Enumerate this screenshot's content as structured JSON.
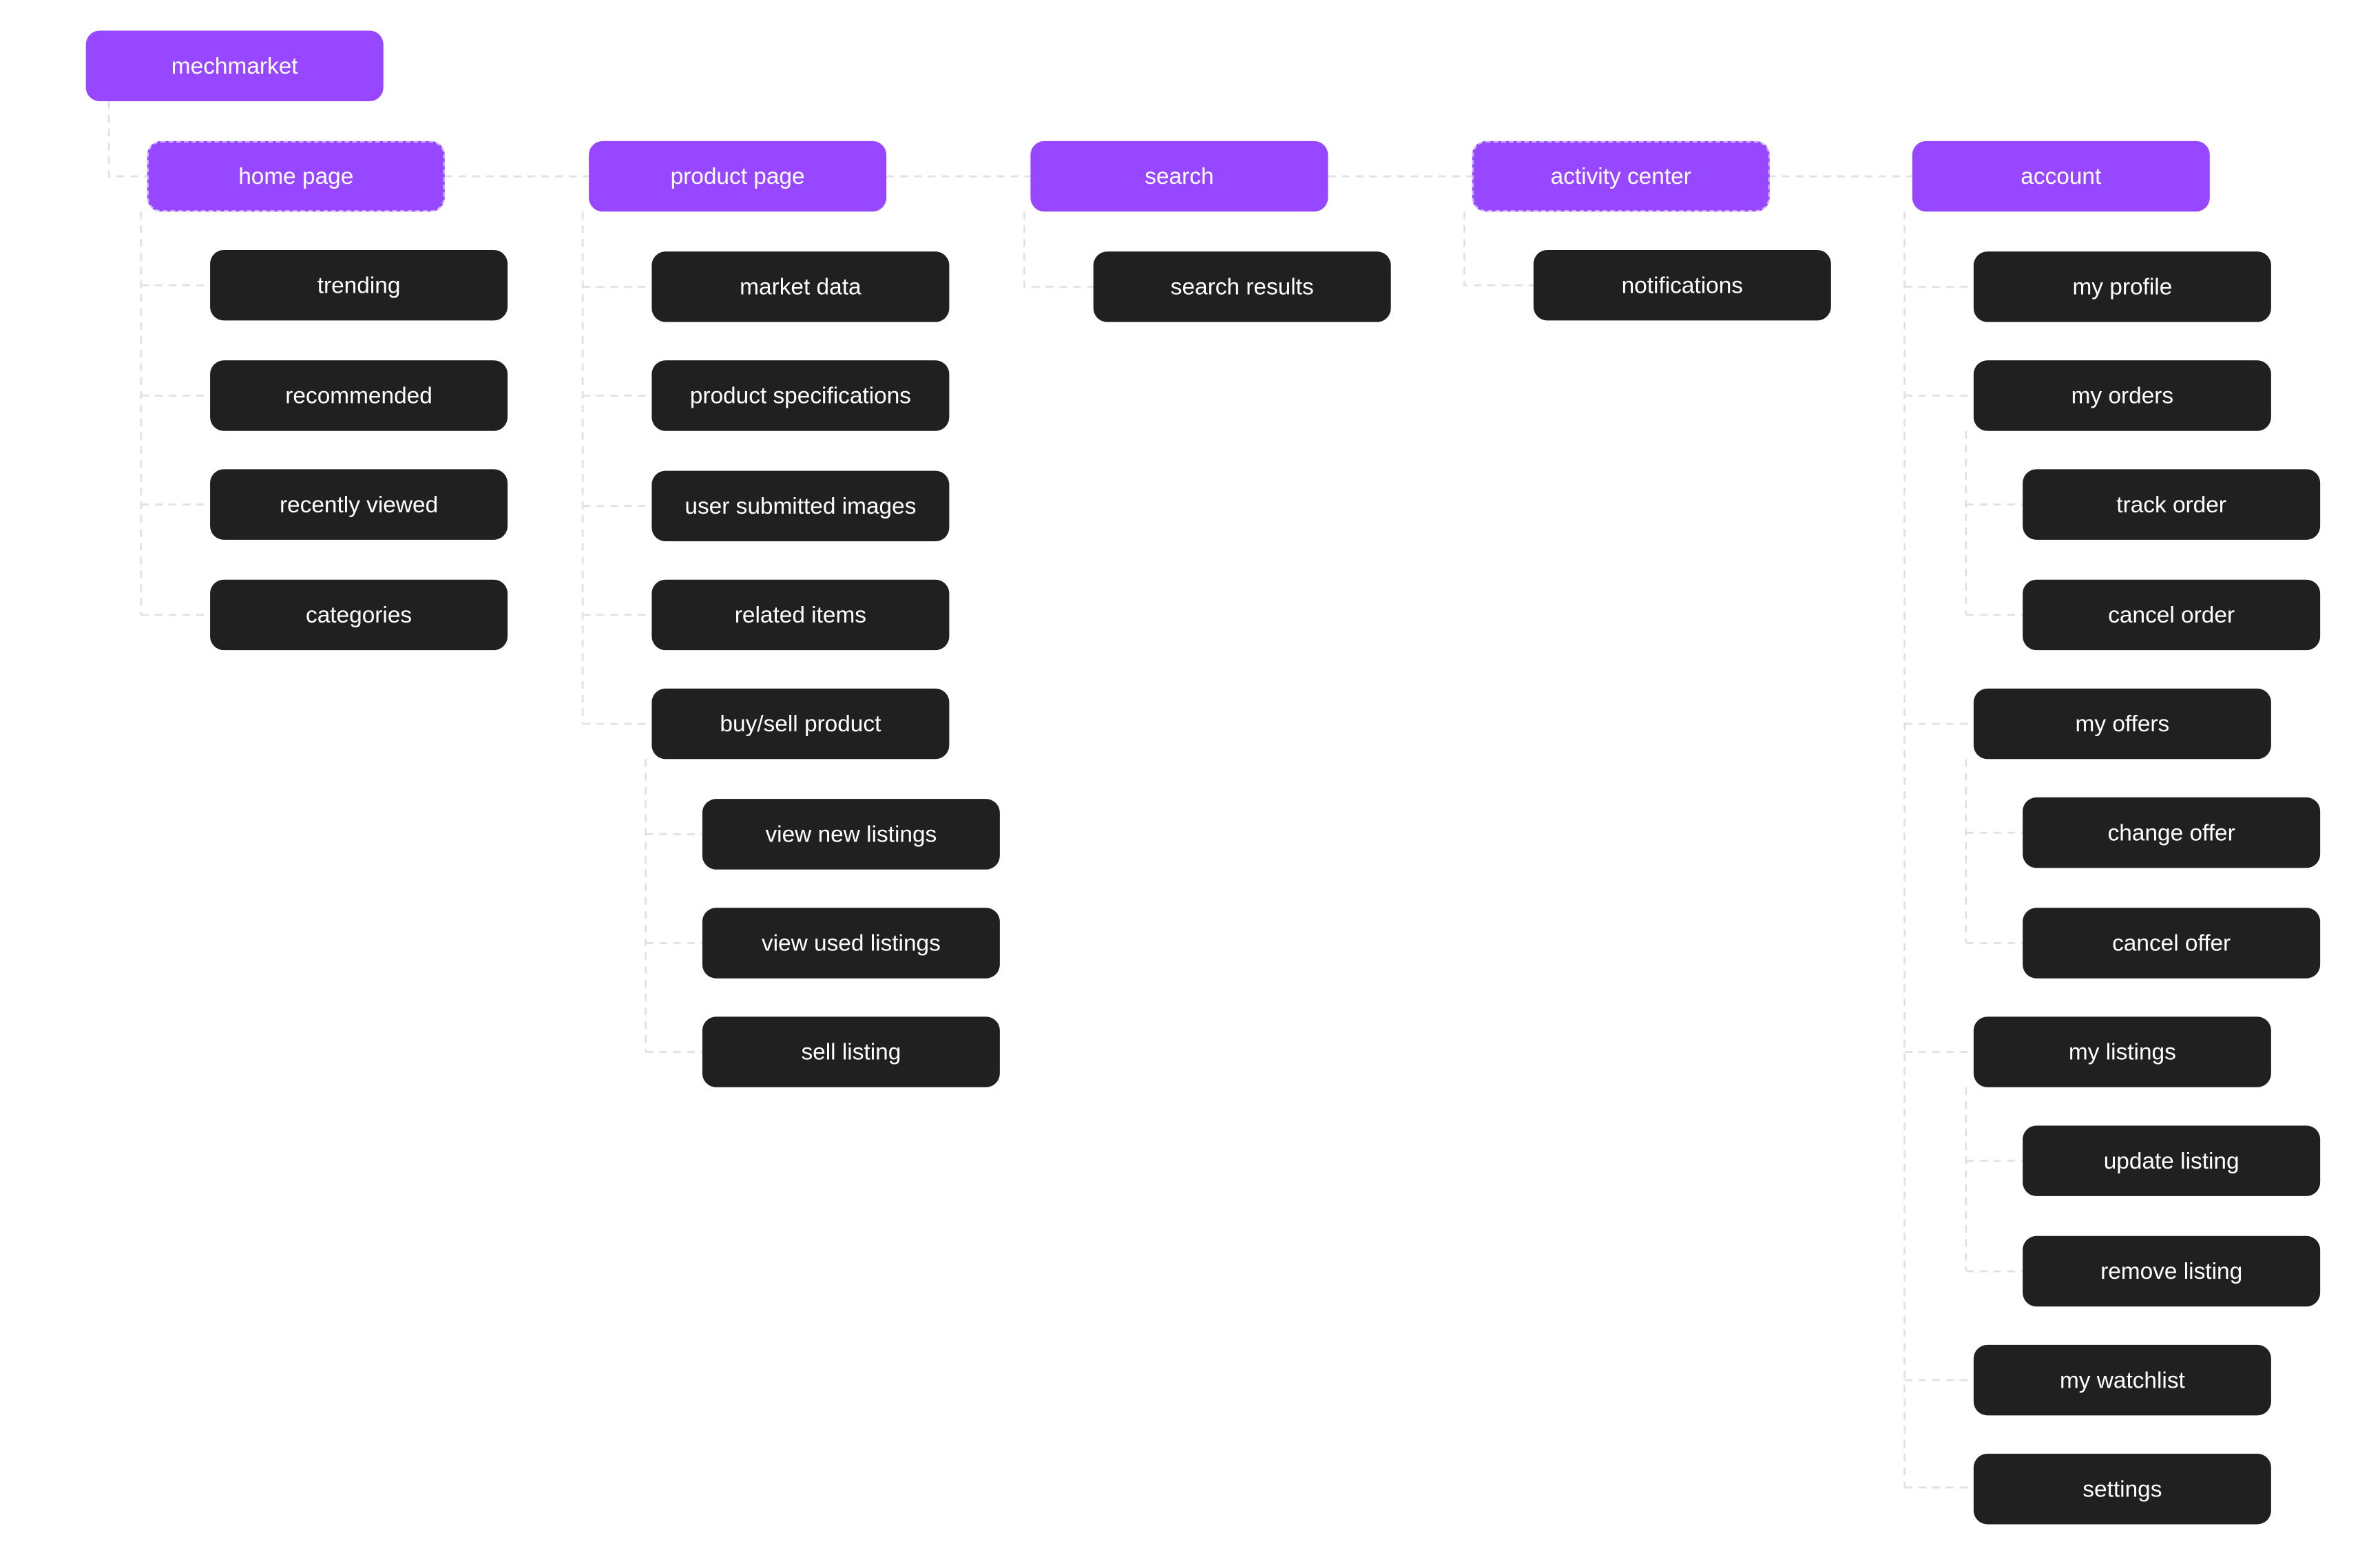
{
  "colors": {
    "section": "#9747ff",
    "leaf": "#202020",
    "connector": "#e2e2e2"
  },
  "root": "mechmarket",
  "sections": {
    "home": {
      "title": "home page",
      "items": {
        "trending": "trending",
        "recommended": "recommended",
        "recently_viewed": "recently viewed",
        "categories": "categories"
      }
    },
    "product": {
      "title": "product page",
      "items": {
        "market_data": "market data",
        "product_specifications": "product specifications",
        "user_submitted_images": "user submitted images",
        "related_items": "related items",
        "buy_sell": "buy/sell product"
      },
      "buy_sell_children": {
        "view_new_listings": "view new listings",
        "view_used_listings": "view used listings",
        "sell_listing": "sell listing"
      }
    },
    "search": {
      "title": "search",
      "items": {
        "search_results": "search results"
      }
    },
    "activity": {
      "title": "activity center",
      "items": {
        "notifications": "notifications"
      }
    },
    "account": {
      "title": "account",
      "items": {
        "my_profile": "my profile",
        "my_orders": "my orders",
        "my_offers": "my offers",
        "my_listings": "my listings",
        "my_watchlist": "my watchlist",
        "settings": "settings"
      },
      "orders_children": {
        "track_order": "track order",
        "cancel_order": "cancel order"
      },
      "offers_children": {
        "change_offer": "change offer",
        "cancel_offer": "cancel offer"
      },
      "listings_children": {
        "update_listing": "update listing",
        "remove_listing": "remove listing"
      }
    }
  }
}
